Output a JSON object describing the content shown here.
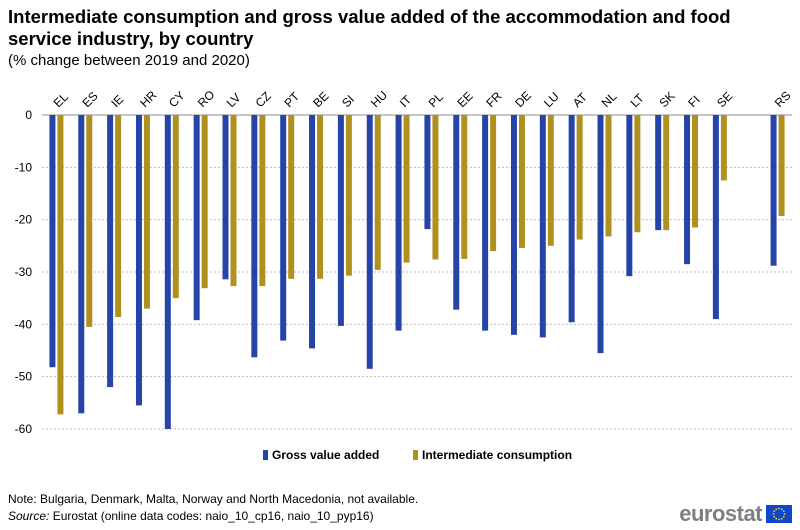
{
  "chart_data": {
    "type": "bar",
    "title": "Intermediate consumption and gross value added of the accommodation and food service industry, by country",
    "subtitle": "(% change between 2019 and 2020)",
    "categories": [
      "EL",
      "ES",
      "IE",
      "HR",
      "CY",
      "RO",
      "LV",
      "CZ",
      "PT",
      "BE",
      "SI",
      "HU",
      "IT",
      "PL",
      "EE",
      "FR",
      "DE",
      "LU",
      "AT",
      "NL",
      "LT",
      "SK",
      "FI",
      "SE",
      "",
      "RS"
    ],
    "series": [
      {
        "name": "Gross value added",
        "color": "#2644a7",
        "values": [
          -48.2,
          -57.0,
          -52.0,
          -55.5,
          -60.0,
          -39.2,
          -31.4,
          -46.3,
          -43.1,
          -44.6,
          -40.3,
          -48.5,
          -41.2,
          -21.8,
          -37.2,
          -41.2,
          -42.0,
          -42.5,
          -39.6,
          -45.5,
          -30.8,
          -22.0,
          -28.5,
          -39.0,
          null,
          -28.8
        ]
      },
      {
        "name": "Intermediate consumption",
        "color": "#b09120",
        "values": [
          -57.2,
          -40.5,
          -38.6,
          -37.0,
          -35.0,
          -33.1,
          -32.7,
          -32.7,
          -31.3,
          -31.3,
          -30.7,
          -29.6,
          -28.2,
          -27.6,
          -27.5,
          -26.0,
          -25.4,
          -25.0,
          -23.8,
          -23.2,
          -22.4,
          -22.0,
          -21.5,
          -12.5,
          null,
          -19.3
        ]
      }
    ],
    "yticks": [
      0,
      -10,
      -20,
      -30,
      -40,
      -50,
      -60
    ],
    "ylim": [
      -60,
      0
    ],
    "grid": true,
    "legend_position": "bottom"
  },
  "footer": {
    "note": "Note: Bulgaria, Denmark, Malta, Norway and North Macedonia, not available.",
    "source_label": "Source:",
    "source_text": " Eurostat (online data codes: naio_10_cp16, naio_10_pyp16)"
  },
  "logo": {
    "text": "eurostat"
  }
}
